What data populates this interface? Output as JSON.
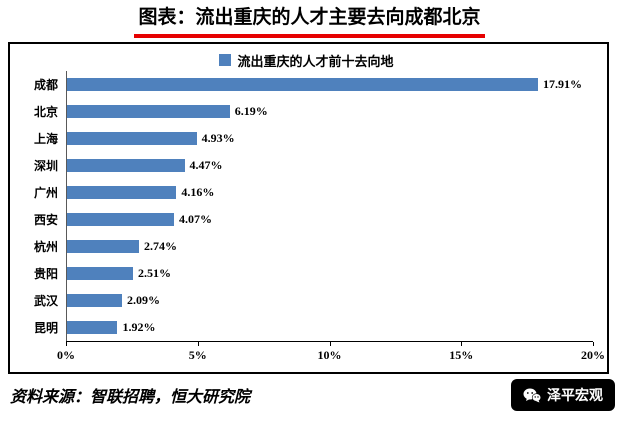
{
  "page": {
    "title": "图表：流出重庆的人才主要去向成都北京",
    "source": "资料来源：智联招聘，恒大研究院",
    "logo": "泽平宏观"
  },
  "chart_data": {
    "type": "bar",
    "orientation": "horizontal",
    "title": "流出重庆的人才前十去向地",
    "legend": "流出重庆的人才前十去向地",
    "categories": [
      "成都",
      "北京",
      "上海",
      "深圳",
      "广州",
      "西安",
      "杭州",
      "贵阳",
      "武汉",
      "昆明"
    ],
    "values": [
      17.91,
      6.19,
      4.93,
      4.47,
      4.16,
      4.07,
      2.74,
      2.51,
      2.09,
      1.92
    ],
    "value_labels": [
      "17.91%",
      "6.19%",
      "4.93%",
      "4.47%",
      "4.16%",
      "4.07%",
      "2.74%",
      "2.51%",
      "2.09%",
      "1.92%"
    ],
    "x_ticks": [
      "0%",
      "5%",
      "10%",
      "15%",
      "20%"
    ],
    "xlim": [
      0,
      20
    ],
    "grid": false,
    "legend_position": "top-center",
    "bar_color": "#4f81bd",
    "accent_red": "#e60000"
  }
}
